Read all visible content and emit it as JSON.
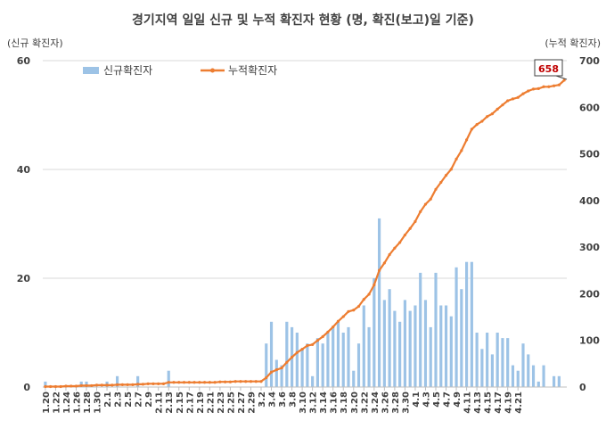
{
  "chart_data": {
    "type": "bar+line",
    "title": "경기지역 일일 신규 및 누적 확진자 현황 (명, 확진(보고)일 기준)",
    "ylabel_left": "(신규 확진자)",
    "ylabel_right": "(누적 확진자)",
    "ylim_left": [
      0,
      60
    ],
    "ylim_right": [
      0,
      700
    ],
    "yticks_left": [
      0,
      20,
      40,
      60
    ],
    "yticks_right": [
      0,
      100,
      200,
      300,
      400,
      500,
      600,
      700
    ],
    "grid": true,
    "legend_position": "top-left",
    "colors": {
      "bar": "#9dc3e6",
      "line": "#ed7d31",
      "callout_text": "#c00000",
      "grid": "#d9d9d9"
    },
    "xtick_labels": [
      "1.20",
      "1.22",
      "1.24",
      "1.26",
      "1.28",
      "1.30",
      "2.1",
      "2.3",
      "2.5",
      "2.7",
      "2.9",
      "2.11",
      "2.13",
      "2.15",
      "2.17",
      "2.19",
      "2.21",
      "2.23",
      "2.25",
      "2.27",
      "2.29",
      "3.2",
      "3.4",
      "3.6",
      "3.8",
      "3.10",
      "3.12",
      "3.14",
      "3.16",
      "3.18",
      "3.20",
      "3.22",
      "3.24",
      "3.26",
      "3.28",
      "3.30",
      "4.1",
      "4.3",
      "4.5",
      "4.7",
      "4.9",
      "4.11",
      "4.13",
      "4.15",
      "4.17",
      "4.19",
      "4.21"
    ],
    "callout": "658",
    "series": [
      {
        "name": "신규확진자",
        "kind": "bar",
        "values": [
          1,
          0,
          0,
          0,
          0,
          0,
          0,
          1,
          1,
          0,
          0,
          0,
          1,
          0,
          2,
          0,
          0,
          0,
          2,
          0,
          0,
          0,
          0,
          0,
          3,
          0,
          0,
          0,
          0,
          0,
          0,
          0,
          0,
          0,
          0,
          0,
          0,
          0,
          0,
          0,
          0,
          0,
          0,
          8,
          12,
          5,
          4,
          12,
          11,
          10,
          7,
          8,
          2,
          9,
          8,
          10,
          11,
          12,
          10,
          11,
          3,
          8,
          15,
          11,
          20,
          31,
          16,
          18,
          14,
          12,
          16,
          14,
          15,
          21,
          16,
          11,
          21,
          15,
          15,
          13,
          22,
          18,
          23,
          23,
          10,
          7,
          10,
          6,
          10,
          9,
          9,
          4,
          3,
          8,
          6,
          4,
          1,
          4,
          0,
          2,
          2,
          0
        ]
      },
      {
        "name": "누적확진자",
        "kind": "line",
        "values": [
          1,
          1,
          1,
          1,
          2,
          2,
          2,
          3,
          3,
          3,
          4,
          4,
          4,
          4,
          5,
          5,
          5,
          5,
          6,
          6,
          7,
          7,
          7,
          7,
          10,
          10,
          10,
          10,
          10,
          10,
          10,
          10,
          10,
          10,
          11,
          11,
          11,
          12,
          12,
          12,
          12,
          12,
          12,
          20,
          32,
          37,
          41,
          53,
          64,
          74,
          81,
          89,
          91,
          100,
          108,
          118,
          129,
          141,
          151,
          162,
          165,
          173,
          188,
          199,
          219,
          250,
          266,
          284,
          298,
          310,
          326,
          340,
          355,
          376,
          392,
          403,
          424,
          439,
          454,
          467,
          489,
          507,
          530,
          553,
          563,
          570,
          580,
          586,
          596,
          605,
          614,
          618,
          621,
          629,
          635,
          639,
          640,
          644,
          644,
          646,
          648,
          658
        ]
      }
    ]
  }
}
